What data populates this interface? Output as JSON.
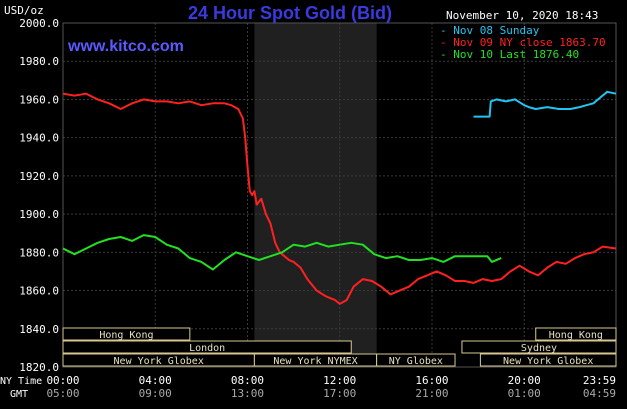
{
  "header": {
    "title": "24 Hour Spot Gold (Bid)",
    "watermark": "www.kitco.com",
    "date": "November 10, 2020 18:43",
    "unit": "USD/oz"
  },
  "legend": [
    {
      "label": "Nov 08 Sunday",
      "color": "#22c4f0"
    },
    {
      "label": "Nov 09 NY close 1863.70",
      "color": "#ff2020"
    },
    {
      "label": "Nov 10 Last 1876.40",
      "color": "#22e022"
    }
  ],
  "colors": {
    "background": "#000000",
    "grid": "#3a3a3a",
    "axis_text": "#ffffff",
    "title": "#3a3ae0",
    "watermark": "#5a5aff",
    "highlight_band": "#202020",
    "session_box_fill": "#000000",
    "session_box_stroke": "#d8c890",
    "session_text": "#e8e0c0"
  },
  "chart_data": {
    "type": "line",
    "title": "24 Hour Spot Gold (Bid)",
    "ylabel": "USD/oz",
    "ylim": [
      1820,
      2000
    ],
    "yticks": [
      "1820.0",
      "1840.0",
      "1860.0",
      "1880.0",
      "1900.0",
      "1920.0",
      "1940.0",
      "1960.0",
      "1980.0",
      "2000.0"
    ],
    "ytick_values": [
      1820,
      1840,
      1860,
      1880,
      1900,
      1920,
      1940,
      1960,
      1980,
      2000
    ],
    "xlim_hours": [
      0,
      23.98
    ],
    "xticks_hours": [
      0,
      4,
      8,
      12,
      16,
      20,
      23.98
    ],
    "xticks_ny": [
      "00:00",
      "04:00",
      "08:00",
      "12:00",
      "16:00",
      "20:00",
      "23:59"
    ],
    "xticks_gmt": [
      "05:00",
      "09:00",
      "13:00",
      "17:00",
      "21:00",
      "01:00",
      "04:59"
    ],
    "x_row_labels": [
      "NY Time",
      "GMT"
    ],
    "grid": true,
    "shaded_region_hours": [
      8.3,
      13.6
    ],
    "series": [
      {
        "name": "Nov 08 Sunday",
        "color": "#22c4f0",
        "x": [
          17.8,
          18.5,
          18.55,
          18.8,
          19.2,
          19.6,
          20.0,
          20.2,
          20.5,
          21.0,
          21.5,
          22.0,
          22.4,
          22.7,
          23.0,
          23.3,
          23.6,
          23.98
        ],
        "y": [
          1951,
          1951,
          1959,
          1960,
          1959,
          1960,
          1957,
          1956,
          1955,
          1956,
          1955,
          1955,
          1956,
          1957,
          1958,
          1961,
          1964,
          1963
        ]
      },
      {
        "name": "Nov 09 NY close 1863.70",
        "color": "#ff2020",
        "x": [
          0,
          0.5,
          1.0,
          1.5,
          2.0,
          2.5,
          3.0,
          3.5,
          4.0,
          4.5,
          5.0,
          5.5,
          6.0,
          6.5,
          7.0,
          7.3,
          7.6,
          7.8,
          7.9,
          8.0,
          8.1,
          8.2,
          8.3,
          8.4,
          8.6,
          8.8,
          9.0,
          9.2,
          9.4,
          9.6,
          9.8,
          10.0,
          10.3,
          10.6,
          11.0,
          11.4,
          11.8,
          12.0,
          12.3,
          12.6,
          13.0,
          13.4,
          13.8,
          14.2,
          14.6,
          15.0,
          15.4,
          15.8,
          16.2,
          16.6,
          17.0,
          17.4,
          17.8,
          18.2,
          18.6,
          19.0,
          19.4,
          19.8,
          20.2,
          20.6,
          21.0,
          21.4,
          21.8,
          22.2,
          22.6,
          23.0,
          23.4,
          23.98
        ],
        "y": [
          1963,
          1962,
          1963,
          1960,
          1958,
          1955,
          1958,
          1960,
          1959,
          1959,
          1958,
          1959,
          1957,
          1958,
          1958,
          1957,
          1955,
          1950,
          1940,
          1925,
          1912,
          1910,
          1912,
          1905,
          1908,
          1900,
          1895,
          1885,
          1880,
          1878,
          1876,
          1875,
          1872,
          1866,
          1860,
          1857,
          1855,
          1853,
          1855,
          1862,
          1866,
          1865,
          1862,
          1858,
          1860,
          1862,
          1866,
          1868,
          1870,
          1868,
          1865,
          1865,
          1864,
          1866,
          1865,
          1866,
          1870,
          1873,
          1870,
          1868,
          1872,
          1875,
          1874,
          1877,
          1879,
          1880,
          1883,
          1882
        ]
      },
      {
        "name": "Nov 10 Last 1876.40",
        "color": "#22e022",
        "x": [
          0,
          0.5,
          1.0,
          1.5,
          2.0,
          2.5,
          3.0,
          3.5,
          4.0,
          4.5,
          5.0,
          5.5,
          6.0,
          6.5,
          7.0,
          7.5,
          8.0,
          8.5,
          9.0,
          9.5,
          10.0,
          10.5,
          11.0,
          11.5,
          12.0,
          12.5,
          13.0,
          13.5,
          14.0,
          14.5,
          15.0,
          15.5,
          16.0,
          16.5,
          17.0,
          17.5,
          18.0,
          18.4,
          18.6,
          19.0
        ],
        "y": [
          1882,
          1879,
          1882,
          1885,
          1887,
          1888,
          1886,
          1889,
          1888,
          1884,
          1882,
          1877,
          1875,
          1871,
          1876,
          1880,
          1878,
          1876,
          1878,
          1880,
          1884,
          1883,
          1885,
          1883,
          1884,
          1885,
          1884,
          1879,
          1877,
          1878,
          1876,
          1876,
          1877,
          1875,
          1878,
          1878,
          1878,
          1878,
          1875,
          1877
        ]
      }
    ]
  },
  "sessions": [
    {
      "label": "Hong Kong",
      "start": 0,
      "end": 5.5,
      "row": 0
    },
    {
      "label": "Hong Kong",
      "start": 20.5,
      "end": 23.98,
      "row": 0
    },
    {
      "label": "London",
      "start": 0,
      "end": 12.5,
      "row": 1
    },
    {
      "label": "Sydney",
      "start": 17.3,
      "end": 23.98,
      "row": 1
    },
    {
      "label": "New York Globex",
      "start": 0,
      "end": 8.3,
      "row": 2
    },
    {
      "label": "New York NYMEX",
      "start": 8.3,
      "end": 13.6,
      "row": 2
    },
    {
      "label": "NY Globex",
      "start": 13.6,
      "end": 17.0,
      "row": 2
    },
    {
      "label": "New York Globex",
      "start": 18.1,
      "end": 23.98,
      "row": 2
    }
  ]
}
